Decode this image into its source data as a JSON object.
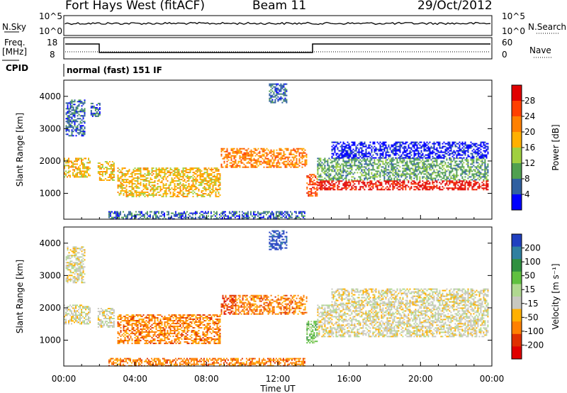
{
  "header": {
    "station": "Fort Hays West (fitACF)",
    "beam": "Beam 11",
    "date": "29/Oct/2012"
  },
  "top_panels": {
    "nsky_label": "N.Sky",
    "nsearch_label": "N.Search",
    "nsky_ticks": [
      "10^5",
      "10^0"
    ],
    "nsearch_ticks": [
      "10^5",
      "10^0"
    ],
    "freq_label": "Freq.",
    "freq_unit": "[MHz]",
    "freq_ticks": [
      "18",
      "8"
    ],
    "nave_label": "Nave",
    "nave_ticks": [
      "60",
      "0"
    ],
    "cpid_label": "CPID",
    "cpid_value": "normal (fast) 151 IF"
  },
  "chart_data": [
    {
      "type": "heatmap",
      "name": "power",
      "ylabel": "Slant Range [km]",
      "yticks": [
        1000,
        2000,
        3000,
        4000
      ],
      "ylim": [
        200,
        4500
      ],
      "xlim": [
        0,
        24
      ],
      "colorbar": {
        "label": "Power [dB]",
        "ticks": [
          "28",
          "24",
          "20",
          "16",
          "12",
          "8",
          "4"
        ],
        "colors": [
          "#e00000",
          "#ff4000",
          "#ff8000",
          "#ffb000",
          "#a0d040",
          "#50a050",
          "#3060a0",
          "#0000ff"
        ]
      },
      "regions": [
        {
          "t": [
            0.0,
            1.5
          ],
          "r": [
            1500,
            2100
          ],
          "level": 3
        },
        {
          "t": [
            0.1,
            1.2
          ],
          "r": [
            2800,
            3900
          ],
          "level": 6
        },
        {
          "t": [
            1.5,
            2.0
          ],
          "r": [
            3400,
            3800
          ],
          "level": 6
        },
        {
          "t": [
            1.9,
            2.8
          ],
          "r": [
            1400,
            2000
          ],
          "level": 3
        },
        {
          "t": [
            3.0,
            8.8
          ],
          "r": [
            900,
            1800
          ],
          "level": 3
        },
        {
          "t": [
            8.8,
            13.6
          ],
          "r": [
            1800,
            2400
          ],
          "level": 2
        },
        {
          "t": [
            13.6,
            14.2
          ],
          "r": [
            900,
            1600
          ],
          "level": 1
        },
        {
          "t": [
            14.2,
            23.8
          ],
          "r": [
            1100,
            1400
          ],
          "level": 0
        },
        {
          "t": [
            14.2,
            23.8
          ],
          "r": [
            1400,
            2100
          ],
          "level": 5
        },
        {
          "t": [
            15.0,
            23.8
          ],
          "r": [
            2100,
            2600
          ],
          "level": 7
        },
        {
          "t": [
            11.5,
            12.5
          ],
          "r": [
            3800,
            4400
          ],
          "level": 6
        },
        {
          "t": [
            2.5,
            13.5
          ],
          "r": [
            200,
            450
          ],
          "level": 6
        }
      ]
    },
    {
      "type": "heatmap",
      "name": "velocity",
      "ylabel": "Slant Range [km]",
      "yticks": [
        1000,
        2000,
        3000,
        4000
      ],
      "ylim": [
        200,
        4500
      ],
      "xlim": [
        0,
        24
      ],
      "xticks": [
        "00:00",
        "04:00",
        "08:00",
        "12:00",
        "16:00",
        "20:00",
        "00:00"
      ],
      "xlabel": "Time UT",
      "colorbar": {
        "label": "Velocity [m s⁻¹]",
        "ticks": [
          "200",
          "100",
          "50",
          "15",
          "-15",
          "-50",
          "-100",
          "-200"
        ],
        "colors": [
          "#2040c0",
          "#3080a0",
          "#309040",
          "#60c040",
          "#b0d890",
          "#c8c8c0",
          "#ffb000",
          "#ff8000",
          "#e03000",
          "#e00000"
        ]
      },
      "regions": [
        {
          "t": [
            0.0,
            1.5
          ],
          "r": [
            1500,
            2100
          ],
          "level": 5
        },
        {
          "t": [
            0.1,
            1.2
          ],
          "r": [
            2800,
            3900
          ],
          "level": 5
        },
        {
          "t": [
            1.9,
            2.8
          ],
          "r": [
            1400,
            2000
          ],
          "level": 5
        },
        {
          "t": [
            3.0,
            8.8
          ],
          "r": [
            900,
            1800
          ],
          "level": 7
        },
        {
          "t": [
            8.8,
            9.6
          ],
          "r": [
            1800,
            2400
          ],
          "level": 8
        },
        {
          "t": [
            9.6,
            13.6
          ],
          "r": [
            1800,
            2400
          ],
          "level": 7
        },
        {
          "t": [
            13.6,
            14.2
          ],
          "r": [
            900,
            1600
          ],
          "level": 3
        },
        {
          "t": [
            14.2,
            23.8
          ],
          "r": [
            1100,
            2100
          ],
          "level": 5
        },
        {
          "t": [
            15.0,
            23.8
          ],
          "r": [
            2100,
            2600
          ],
          "level": 5
        },
        {
          "t": [
            11.5,
            12.5
          ],
          "r": [
            3800,
            4400
          ],
          "level": 0
        },
        {
          "t": [
            2.5,
            13.5
          ],
          "r": [
            200,
            450
          ],
          "level": 7
        }
      ]
    }
  ]
}
